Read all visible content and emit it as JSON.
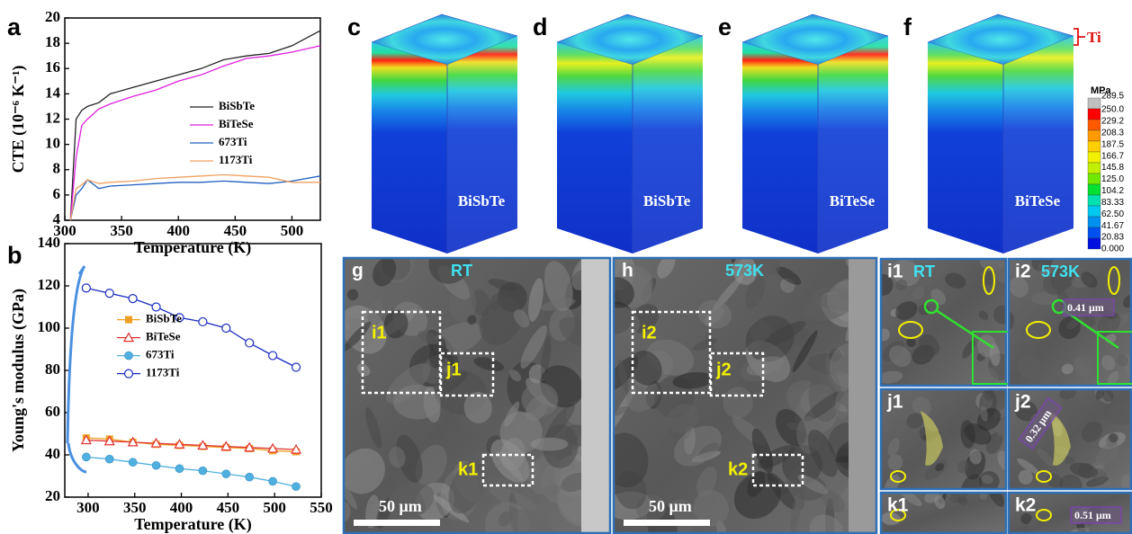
{
  "chart_data": [
    {
      "type": "line",
      "panel_label": "a",
      "xlabel": "Temperature (K)",
      "ylabel": "CTE (10⁻⁶ K⁻¹)",
      "x": [
        305,
        310,
        315,
        320,
        330,
        340,
        360,
        380,
        400,
        420,
        440,
        460,
        480,
        500,
        525
      ],
      "series": [
        {
          "name": "BiSbTe",
          "color": "#222222",
          "values": [
            4,
            12,
            12.7,
            13,
            13.3,
            14,
            14.5,
            15,
            15.5,
            16,
            16.7,
            17,
            17.2,
            17.8,
            19
          ]
        },
        {
          "name": "BiTeSe",
          "color": "#e020e0",
          "values": [
            4,
            9,
            11.5,
            12,
            12.8,
            13.2,
            13.8,
            14.3,
            15,
            15.5,
            16.2,
            16.8,
            17,
            17.3,
            17.8
          ]
        },
        {
          "name": "673Ti",
          "color": "#2060c0",
          "values": [
            4,
            6,
            6.5,
            7.2,
            6.5,
            6.7,
            6.8,
            6.9,
            7,
            7,
            7.1,
            7,
            6.9,
            7.1,
            7.5
          ]
        },
        {
          "name": "1173Ti",
          "color": "#f0a060",
          "values": [
            4,
            6.5,
            6.8,
            7.2,
            6.9,
            7,
            7.1,
            7.3,
            7.4,
            7.5,
            7.6,
            7.5,
            7.4,
            7,
            7
          ]
        }
      ],
      "xlim": [
        300,
        525
      ],
      "xticks": [
        300,
        350,
        400,
        450,
        500
      ],
      "ylim": [
        4,
        20
      ],
      "yticks": [
        4,
        6,
        8,
        10,
        12,
        14,
        16,
        18,
        20
      ],
      "legend": "center right"
    },
    {
      "type": "line",
      "panel_label": "b",
      "xlabel": "Temperature (K)",
      "ylabel": "Young's modulus (GPa)",
      "x": [
        298,
        323,
        348,
        373,
        398,
        423,
        448,
        473,
        498,
        523
      ],
      "series": [
        {
          "name": "BiSbTe",
          "color": "#f0a020",
          "marker": "square",
          "values": [
            48,
            47.5,
            46,
            45,
            44.5,
            44,
            43.5,
            43,
            42,
            41.5
          ]
        },
        {
          "name": "BiTeSe",
          "color": "#e03030",
          "marker": "triangle",
          "values": [
            47,
            46.5,
            46,
            45.5,
            45,
            44.5,
            44,
            43.5,
            43,
            42.5
          ]
        },
        {
          "name": "673Ti",
          "color": "#4fb0e0",
          "marker": "circle",
          "values": [
            39,
            38,
            36.5,
            35,
            33.5,
            32.5,
            31,
            29.5,
            27.5,
            25
          ]
        },
        {
          "name": "1173Ti",
          "color": "#1a2cc0",
          "marker": "circle-open",
          "values": [
            119,
            116.5,
            114,
            110,
            105,
            103,
            100,
            93,
            87,
            81.5
          ]
        }
      ],
      "xlim": [
        275,
        550
      ],
      "xticks": [
        300,
        350,
        400,
        450,
        500,
        550
      ],
      "ylim": [
        20,
        140
      ],
      "yticks": [
        20,
        40,
        60,
        80,
        100,
        120,
        140
      ],
      "legend": "center left"
    }
  ],
  "fem": {
    "panels": [
      {
        "label": "c",
        "material": "BiSbTe"
      },
      {
        "label": "d",
        "material": "BiSbTe"
      },
      {
        "label": "e",
        "material": "BiTeSe"
      },
      {
        "label": "f",
        "material": "BiTeSe"
      }
    ],
    "layer_label": "Ti",
    "colorbar": {
      "unit": "MPa",
      "labels": [
        "289.5",
        "250.0",
        "229.2",
        "208.3",
        "187.5",
        "166.7",
        "145.8",
        "125.0",
        "104.2",
        "83.33",
        "62.50",
        "41.67",
        "20.83",
        "0.000"
      ],
      "colors": [
        "#c0c0c0",
        "#ff0000",
        "#ff5a00",
        "#ff9a00",
        "#ffcf00",
        "#f0f000",
        "#c0f000",
        "#70e800",
        "#00e030",
        "#00e0b0",
        "#00c8f0",
        "#0090f0",
        "#0050f0",
        "#0010e0"
      ]
    }
  },
  "sem": {
    "overviews": [
      {
        "label": "g",
        "condition": "RT",
        "boxes": [
          "i1",
          "j1",
          "k1"
        ],
        "scale": "50 μm"
      },
      {
        "label": "h",
        "condition": "573K",
        "boxes": [
          "i2",
          "j2",
          "k2"
        ],
        "scale": "50 μm"
      }
    ],
    "zooms": [
      {
        "label": "i1",
        "condition": "RT"
      },
      {
        "label": "i2",
        "condition": "573K",
        "measure": "0.41 μm"
      },
      {
        "label": "j1"
      },
      {
        "label": "j2",
        "measure": "0.32 μm"
      },
      {
        "label": "k1"
      },
      {
        "label": "k2",
        "measure": "0.51 μm"
      }
    ]
  }
}
